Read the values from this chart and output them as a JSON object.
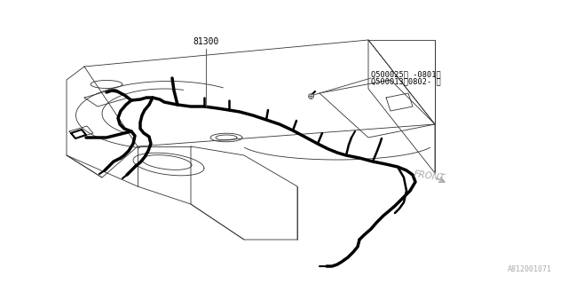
{
  "bg_color": "#ffffff",
  "panel_color": "#333333",
  "harness_color": "#000000",
  "label_color": "#555555",
  "text_color": "#000000",
  "label_81300": "81300",
  "label_q1": "Q500025（ -0801）",
  "label_q2": "Q500013（0802- ）",
  "label_front": "FRONT",
  "label_partno": "A812001071",
  "panel_lw": 0.6,
  "harness_lw": 2.5
}
